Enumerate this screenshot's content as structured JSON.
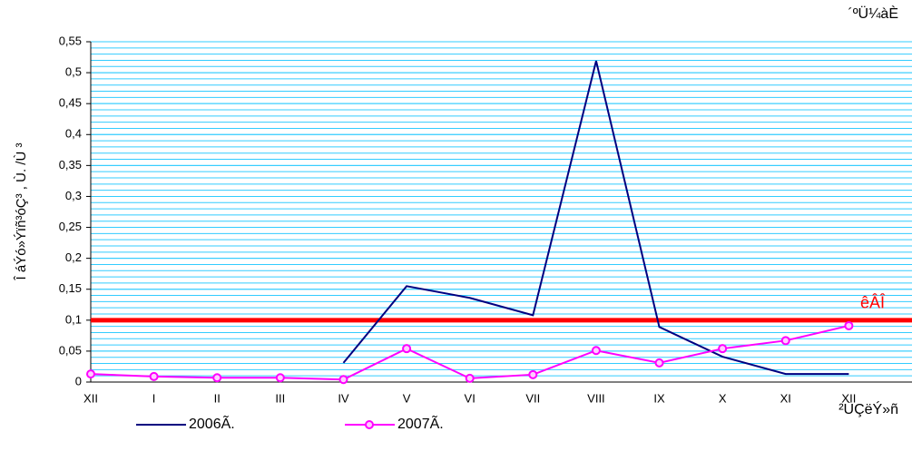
{
  "chart_data": {
    "type": "line",
    "corner_label": "´ºÜ¼àÈ",
    "y_label": "Î áÝó»Ýïñ³óÇ³ , Ù. /Ù ³",
    "x_label": "²ÙÇëÝ»ñ",
    "categories": [
      "XII",
      "I",
      "II",
      "III",
      "IV",
      "V",
      "VI",
      "VII",
      "VIII",
      "IX",
      "X",
      "XI",
      "XII"
    ],
    "series": [
      {
        "name": "2006Ã.",
        "color": "#000080",
        "marker": false,
        "values": [
          null,
          null,
          null,
          null,
          0.031,
          0.155,
          0.136,
          0.108,
          0.519,
          0.089,
          0.041,
          0.013,
          0.013
        ]
      },
      {
        "name": "2007Ã.",
        "color": "#ff00ff",
        "marker": true,
        "values": [
          0.013,
          0.009,
          0.007,
          0.007,
          0.004,
          0.054,
          0.006,
          0.012,
          0.051,
          0.031,
          0.054,
          0.067,
          0.091
        ]
      }
    ],
    "threshold": {
      "value": 0.1,
      "label": "êÂÎ",
      "color": "#ff0000"
    },
    "ylim": [
      0,
      0.55
    ],
    "yticks": [
      {
        "value": 0,
        "label": "0"
      },
      {
        "value": 0.05,
        "label": "0,05"
      },
      {
        "value": 0.1,
        "label": "0,1"
      },
      {
        "value": 0.15,
        "label": "0,15"
      },
      {
        "value": 0.2,
        "label": "0,2"
      },
      {
        "value": 0.25,
        "label": "0,25"
      },
      {
        "value": 0.3,
        "label": "0,3"
      },
      {
        "value": 0.35,
        "label": "0,35"
      },
      {
        "value": 0.4,
        "label": "0,4"
      },
      {
        "value": 0.45,
        "label": "0,45"
      },
      {
        "value": 0.5,
        "label": "0,5"
      },
      {
        "value": 0.55,
        "label": "0,55"
      }
    ],
    "minor_grid_step": 0.01,
    "grid": true,
    "grid_color": "#33ccff"
  }
}
